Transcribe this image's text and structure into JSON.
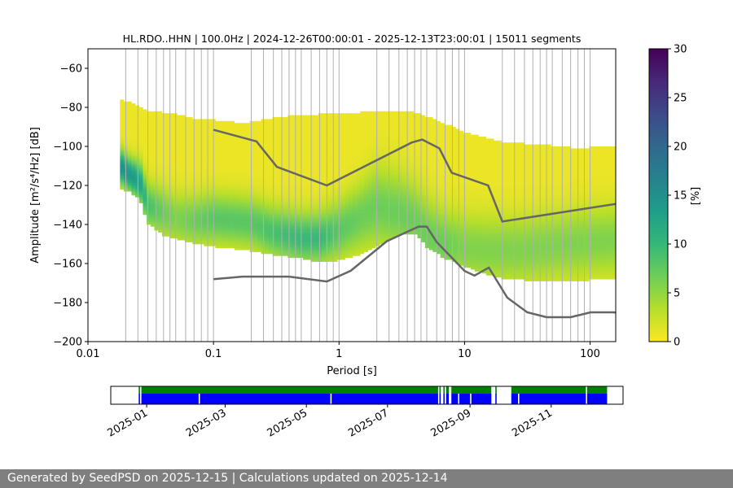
{
  "chart_data": {
    "type": "heatmap",
    "title": "HL.RDO..HHN | 100.0Hz | 2024-12-26T00:00:01 - 2025-12-13T23:00:01 | 15011 segments",
    "xlabel": "Period [s]",
    "ylabel": "Amplitude [m²/s⁴/Hz] [dB]",
    "xscale": "log",
    "xlim": [
      0.01,
      160
    ],
    "ylim": [
      -200,
      -50
    ],
    "xticks": [
      {
        "value": 0.01,
        "label": "0.01"
      },
      {
        "value": 0.1,
        "label": "0.1"
      },
      {
        "value": 1,
        "label": "1"
      },
      {
        "value": 10,
        "label": "10"
      },
      {
        "value": 100,
        "label": "100"
      }
    ],
    "yticks": [
      {
        "value": -60,
        "label": "−60"
      },
      {
        "value": -80,
        "label": "−80"
      },
      {
        "value": -100,
        "label": "−100"
      },
      {
        "value": -120,
        "label": "−120"
      },
      {
        "value": -140,
        "label": "−140"
      },
      {
        "value": -160,
        "label": "−160"
      },
      {
        "value": -180,
        "label": "−180"
      },
      {
        "value": -200,
        "label": "−200"
      }
    ],
    "grid_periods": [
      0.02,
      0.025,
      0.03,
      0.035,
      0.04,
      0.045,
      0.05,
      0.06,
      0.07,
      0.08,
      0.09,
      0.1,
      0.2,
      0.25,
      0.3,
      0.35,
      0.4,
      0.45,
      0.5,
      0.6,
      0.7,
      0.8,
      0.9,
      1,
      2,
      2.5,
      3,
      3.5,
      4,
      4.5,
      5,
      6,
      7,
      8,
      9,
      10,
      20,
      25,
      30,
      35,
      40,
      45,
      50,
      60,
      70,
      80,
      90,
      100
    ],
    "colorbar": {
      "label": "[%]",
      "range": [
        0,
        30
      ],
      "ticks": [
        {
          "value": 0,
          "label": "0"
        },
        {
          "value": 5,
          "label": "5"
        },
        {
          "value": 10,
          "label": "10"
        },
        {
          "value": 15,
          "label": "15"
        },
        {
          "value": 20,
          "label": "20"
        },
        {
          "value": 25,
          "label": "25"
        },
        {
          "value": 30,
          "label": "30"
        }
      ],
      "colors": [
        "#fde725",
        "#b5de2b",
        "#6ece58",
        "#35b779",
        "#1f9e89",
        "#26828e",
        "#31688e",
        "#3e4989",
        "#482878",
        "#440154"
      ]
    },
    "density": {
      "period_bins": [
        0.018,
        0.022,
        0.026,
        0.03,
        0.04,
        0.05,
        0.07,
        0.1,
        0.15,
        0.2,
        0.3,
        0.5,
        0.7,
        1,
        1.5,
        2,
        3,
        4,
        5,
        7,
        10,
        15,
        20,
        30,
        50,
        70,
        100,
        160
      ],
      "lower_db": [
        -122,
        -124,
        -128,
        -140,
        -146,
        -148,
        -150,
        -152,
        -153,
        -154,
        -156,
        -158,
        -160,
        -159,
        -156,
        -152,
        -146,
        -145,
        -152,
        -158,
        -162,
        -166,
        -168,
        -169,
        -170,
        -169,
        -169,
        -168
      ],
      "upper_db": [
        -76,
        -78,
        -80,
        -82,
        -83,
        -84,
        -86,
        -87,
        -88,
        -88,
        -86,
        -84,
        -84,
        -83,
        -83,
        -82,
        -82,
        -83,
        -85,
        -89,
        -93,
        -96,
        -98,
        -99,
        -100,
        -101,
        -101,
        -100
      ],
      "mode_db": [
        -110,
        -115,
        -118,
        -130,
        -134,
        -137,
        -138,
        -137,
        -138,
        -139,
        -144,
        -147,
        -147,
        -143,
        -136,
        -131,
        -134,
        -138,
        -145,
        -150,
        -152,
        -153,
        -153,
        -153,
        -151,
        -150,
        -149,
        -148
      ],
      "mode_percent": [
        14,
        13,
        12,
        8,
        6,
        5,
        6,
        7,
        7,
        7,
        8,
        9,
        9,
        7,
        6,
        6,
        6,
        6,
        6,
        6,
        5,
        5,
        5,
        5,
        5,
        5,
        5,
        5
      ],
      "spread_db": [
        6,
        6,
        7,
        8,
        9,
        9,
        9,
        9,
        9,
        9,
        9,
        9,
        9,
        10,
        12,
        14,
        14,
        13,
        13,
        12,
        12,
        12,
        12,
        12,
        12,
        12,
        12,
        12
      ]
    },
    "noise_models": [
      {
        "name": "high-noise-model",
        "points": [
          [
            0.1,
            -91.5
          ],
          [
            0.22,
            -97.4
          ],
          [
            0.32,
            -110.5
          ],
          [
            0.8,
            -120
          ],
          [
            3.8,
            -98
          ],
          [
            4.6,
            -96.5
          ],
          [
            6.3,
            -101
          ],
          [
            7.9,
            -113.5
          ],
          [
            15.4,
            -120
          ],
          [
            20,
            -138.5
          ],
          [
            354.8,
            -126
          ]
        ]
      },
      {
        "name": "low-noise-model",
        "points": [
          [
            0.1,
            -168
          ],
          [
            0.17,
            -166.7
          ],
          [
            0.4,
            -166.7
          ],
          [
            0.8,
            -169.2
          ],
          [
            1.24,
            -163.7
          ],
          [
            2.4,
            -148.6
          ],
          [
            4.3,
            -141.1
          ],
          [
            5,
            -141.1
          ],
          [
            6,
            -149
          ],
          [
            10,
            -163.8
          ],
          [
            12,
            -166.2
          ],
          [
            15.6,
            -162.1
          ],
          [
            21.9,
            -177.5
          ],
          [
            31.6,
            -185
          ],
          [
            45,
            -187.5
          ],
          [
            70,
            -187.5
          ],
          [
            101,
            -185
          ],
          [
            154,
            -185
          ],
          [
            328,
            -187.5
          ]
        ]
      }
    ]
  },
  "availability": {
    "date_range": [
      "2024-12-26",
      "2025-12-13"
    ],
    "xlim": [
      "2024-12-05",
      "2025-12-25"
    ],
    "tick_labels": [
      {
        "date": "2025-01-01",
        "label": "2025-01"
      },
      {
        "date": "2025-03-01",
        "label": "2025-03"
      },
      {
        "date": "2025-05-01",
        "label": "2025-05"
      },
      {
        "date": "2025-07-01",
        "label": "2025-07"
      },
      {
        "date": "2025-09-01",
        "label": "2025-09"
      },
      {
        "date": "2025-11-01",
        "label": "2025-11"
      }
    ],
    "data_color": "#0000ff",
    "psd_color": "#008000",
    "data_spans": [
      [
        "2024-12-26",
        "2024-12-27"
      ],
      [
        "2024-12-28",
        "2025-02-09"
      ],
      [
        "2025-02-10",
        "2025-05-19"
      ],
      [
        "2025-05-20",
        "2025-08-08"
      ],
      [
        "2025-08-09",
        "2025-08-10"
      ],
      [
        "2025-08-12",
        "2025-08-13"
      ],
      [
        "2025-08-14",
        "2025-08-16"
      ],
      [
        "2025-08-18",
        "2025-08-23"
      ],
      [
        "2025-08-24",
        "2025-09-01"
      ],
      [
        "2025-09-02",
        "2025-09-17"
      ],
      [
        "2025-09-20",
        "2025-09-21"
      ],
      [
        "2025-10-02",
        "2025-10-07"
      ],
      [
        "2025-10-08",
        "2025-11-27"
      ],
      [
        "2025-11-28",
        "2025-12-13"
      ]
    ],
    "psd_spans": [
      [
        "2024-12-26",
        "2024-12-27"
      ],
      [
        "2024-12-28",
        "2025-08-08"
      ],
      [
        "2025-08-09",
        "2025-08-10"
      ],
      [
        "2025-08-12",
        "2025-08-13"
      ],
      [
        "2025-08-14",
        "2025-08-16"
      ],
      [
        "2025-08-18",
        "2025-09-17"
      ],
      [
        "2025-09-20",
        "2025-09-21"
      ],
      [
        "2025-10-02",
        "2025-11-27"
      ],
      [
        "2025-11-28",
        "2025-12-13"
      ]
    ]
  },
  "footer_text": "Generated by SeedPSD on 2025-12-15 | Calculations updated on 2025-12-14"
}
